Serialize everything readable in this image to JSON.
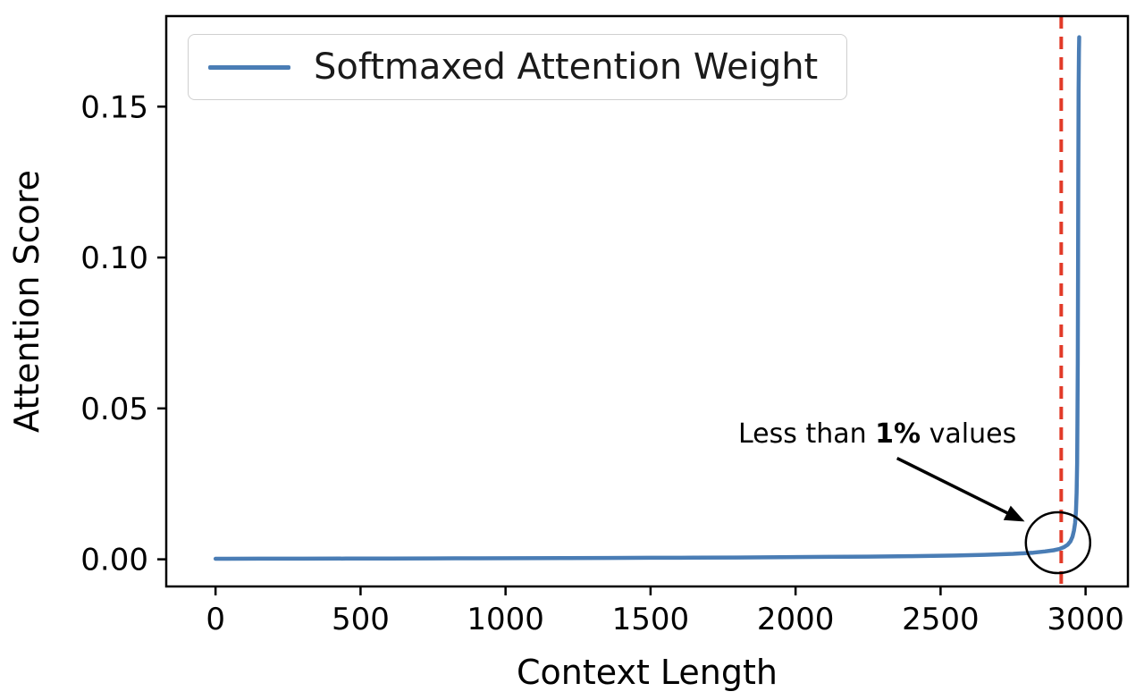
{
  "chart_data": {
    "type": "line",
    "title": "",
    "xlabel": "Context Length",
    "ylabel": "Attention Score",
    "xlim": [
      -170,
      3146
    ],
    "ylim": [
      -0.009,
      0.18
    ],
    "xticks": [
      0,
      500,
      1000,
      1500,
      2000,
      2500,
      3000
    ],
    "xtick_labels": [
      "0",
      "500",
      "1000",
      "1500",
      "2000",
      "2500",
      "3000"
    ],
    "yticks": [
      0.0,
      0.05,
      0.1,
      0.15
    ],
    "ytick_labels": [
      "0.00",
      "0.05",
      "0.10",
      "0.15"
    ],
    "grid": false,
    "legend": {
      "position": "upper left",
      "label": "Softmaxed Attention Weight"
    },
    "series": [
      {
        "name": "Softmaxed Attention Weight",
        "color": "#4a7db5",
        "points": [
          [
            0,
            0.00018
          ],
          [
            150,
            0.0002
          ],
          [
            300,
            0.00022
          ],
          [
            450,
            0.00025
          ],
          [
            600,
            0.00028
          ],
          [
            750,
            0.0003
          ],
          [
            900,
            0.00033
          ],
          [
            1050,
            0.00036
          ],
          [
            1200,
            0.0004
          ],
          [
            1350,
            0.00045
          ],
          [
            1500,
            0.0005
          ],
          [
            1650,
            0.00055
          ],
          [
            1800,
            0.0006
          ],
          [
            1950,
            0.0007
          ],
          [
            2100,
            0.0008
          ],
          [
            2250,
            0.0009
          ],
          [
            2400,
            0.00105
          ],
          [
            2550,
            0.00125
          ],
          [
            2650,
            0.0015
          ],
          [
            2750,
            0.0018
          ],
          [
            2820,
            0.0022
          ],
          [
            2860,
            0.0026
          ],
          [
            2890,
            0.003
          ],
          [
            2910,
            0.0034
          ],
          [
            2925,
            0.004
          ],
          [
            2938,
            0.0048
          ],
          [
            2948,
            0.006
          ],
          [
            2955,
            0.0075
          ],
          [
            2960,
            0.0095
          ],
          [
            2964,
            0.012
          ],
          [
            2967,
            0.016
          ],
          [
            2969,
            0.022
          ],
          [
            2971,
            0.032
          ],
          [
            2972,
            0.045
          ],
          [
            2973,
            0.065
          ],
          [
            2974,
            0.095
          ],
          [
            2975,
            0.13
          ],
          [
            2976,
            0.155
          ],
          [
            2977,
            0.168
          ],
          [
            2978,
            0.173
          ]
        ]
      }
    ],
    "vline": {
      "x": 2916,
      "color": "#e23a28",
      "style": "dashed"
    },
    "annotation": {
      "prefix": "Less than ",
      "bold": "1%",
      "suffix": " values",
      "arrow_start": [
        2350,
        0.0335
      ],
      "arrow_end": [
        2790,
        0.0125
      ],
      "circle_center": [
        2905,
        0.0055
      ],
      "circle_radius_px": [
        36,
        34
      ]
    }
  }
}
